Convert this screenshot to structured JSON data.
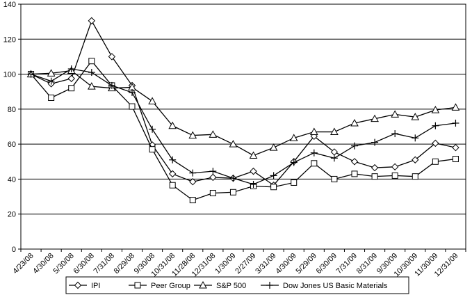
{
  "chart_data": {
    "type": "line",
    "title": "",
    "xlabel": "",
    "ylabel": "",
    "ylim": [
      0,
      140
    ],
    "yticks": [
      0,
      20,
      40,
      60,
      80,
      100,
      120,
      140
    ],
    "grid": "horizontal",
    "legend_position": "bottom",
    "categories": [
      "4/23/08",
      "4/30/08",
      "5/30/08",
      "6/30/08",
      "7/31/08",
      "8/29/08",
      "9/30/08",
      "10/31/08",
      "11/28/08",
      "12/31/08",
      "1/30/09",
      "2/27/09",
      "3/31/09",
      "4/30/09",
      "5/29/09",
      "6/30/09",
      "7/31/09",
      "8/31/09",
      "9/30/09",
      "10/30/09",
      "11/30/09",
      "12/31/09"
    ],
    "series": [
      {
        "name": "IPI",
        "marker": "diamond",
        "values": [
          100,
          94.5,
          97.5,
          130.5,
          110,
          93.5,
          59.5,
          43,
          38.5,
          41,
          40.5,
          44.5,
          36.5,
          50,
          64.5,
          55.5,
          50,
          46.5,
          47,
          51,
          60.5,
          58
        ]
      },
      {
        "name": "Peer Group",
        "marker": "square",
        "values": [
          100,
          86.5,
          92,
          107.5,
          93.5,
          81.5,
          57,
          36.5,
          28,
          32,
          32.5,
          36,
          35.5,
          38,
          49,
          40,
          43,
          41.5,
          42,
          41.5,
          50,
          51.5
        ]
      },
      {
        "name": "S&P 500",
        "marker": "triangle",
        "values": [
          100,
          100.5,
          102,
          93,
          92,
          92.5,
          84.5,
          70.5,
          65,
          65.5,
          60,
          53.5,
          58,
          63.5,
          67,
          67,
          72,
          74.5,
          77,
          75.5,
          79.5,
          81
        ]
      },
      {
        "name": "Dow Jones US Basic Materials",
        "marker": "plus",
        "values": [
          100,
          96,
          103,
          101,
          93.5,
          89.5,
          68.5,
          51,
          43.5,
          44.5,
          40.5,
          37,
          42,
          49.5,
          55,
          52,
          59,
          61,
          66,
          63.5,
          70.5,
          72
        ]
      }
    ]
  },
  "legend": {
    "items": [
      "IPI",
      "Peer Group",
      "S&P 500",
      "Dow Jones US Basic Materials"
    ]
  }
}
